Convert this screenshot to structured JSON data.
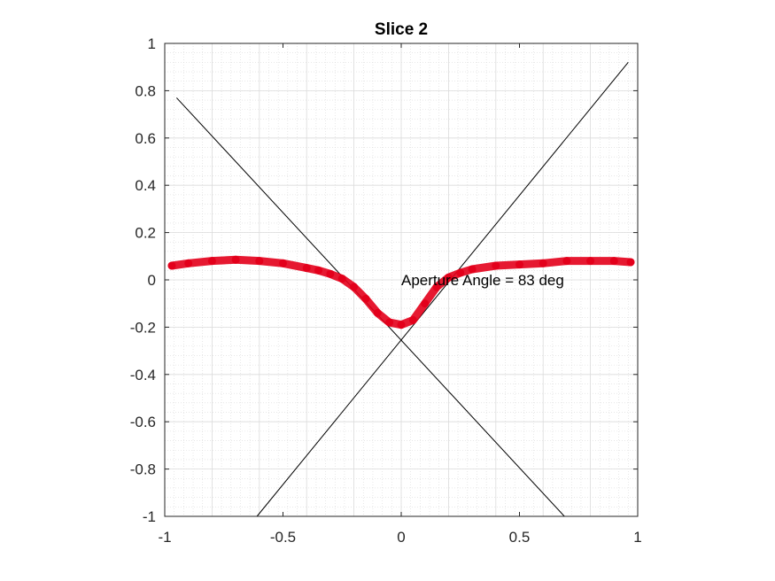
{
  "chart_data": {
    "type": "scatter",
    "title": "Slice 2",
    "xlabel": "",
    "ylabel": "",
    "xlim": [
      -1,
      1
    ],
    "ylim": [
      -1,
      1
    ],
    "grid": true,
    "minor_grid": true,
    "legend": "none",
    "x_ticks": [
      -1,
      -0.5,
      0,
      0.5,
      1
    ],
    "x_tick_labels": [
      "-1",
      "-0.5",
      "0",
      "0.5",
      "1"
    ],
    "y_ticks": [
      1,
      0.8,
      0.6,
      0.4,
      0.2,
      0,
      -0.2,
      -0.4,
      -0.6,
      -0.8,
      -1
    ],
    "y_tick_labels": [
      "1",
      "0.8",
      "0.6",
      "0.4",
      "0.2",
      "0",
      "-0.2",
      "-0.4",
      "-0.6",
      "-0.8",
      "-1"
    ],
    "series": [
      {
        "color": "#e3001b",
        "marker": "dot",
        "x": [
          -0.97,
          -0.9,
          -0.8,
          -0.7,
          -0.6,
          -0.5,
          -0.4,
          -0.35,
          -0.3,
          -0.25,
          -0.2,
          -0.15,
          -0.1,
          -0.05,
          0,
          0.05,
          0.1,
          0.15,
          0.2,
          0.25,
          0.3,
          0.4,
          0.5,
          0.6,
          0.7,
          0.8,
          0.9,
          0.97
        ],
        "y": [
          0.06,
          0.07,
          0.08,
          0.085,
          0.08,
          0.07,
          0.05,
          0.04,
          0.025,
          0.005,
          -0.03,
          -0.08,
          -0.14,
          -0.18,
          -0.19,
          -0.17,
          -0.1,
          -0.03,
          0.01,
          0.03,
          0.045,
          0.06,
          0.065,
          0.07,
          0.08,
          0.08,
          0.08,
          0.075
        ]
      }
    ],
    "lines": [
      {
        "color": "#000000",
        "x": [
          -0.95,
          0.69
        ],
        "y": [
          0.77,
          -1
        ]
      },
      {
        "color": "#000000",
        "x": [
          -0.61,
          0.96
        ],
        "y": [
          -1,
          0.92
        ]
      }
    ],
    "annotations": [
      {
        "text": "Aperture Angle = 83 deg",
        "x": 0,
        "y": 0
      }
    ]
  }
}
